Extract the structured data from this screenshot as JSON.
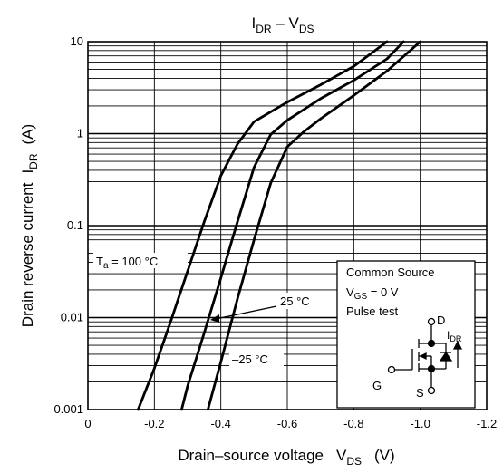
{
  "chart_data": {
    "type": "line",
    "title": "I",
    "title_sub": "DR",
    "title_mid": " – V",
    "title_sub2": "DS",
    "xlabel": "Drain–source voltage",
    "xlabel_sym": "V",
    "xlabel_sym_sub": "DS",
    "xlabel_unit": "(V)",
    "ylabel": "Drain reverse current",
    "ylabel_sym": "I",
    "ylabel_sym_sub": "DR",
    "ylabel_unit": "(A)",
    "x_scale": "linear",
    "y_scale": "log",
    "xlim": [
      0,
      -1.2
    ],
    "ylim": [
      0.001,
      10
    ],
    "grid": true,
    "x_ticks": [
      0,
      -0.2,
      -0.4,
      -0.6,
      -0.8,
      -1.0,
      -1.2
    ],
    "x_tick_labels": [
      "0",
      "-0.2",
      "-0.4",
      "-0.6",
      "-0.8",
      "-1.0",
      "-1.2"
    ],
    "y_ticks": [
      0.001,
      0.01,
      0.1,
      1,
      10
    ],
    "y_tick_labels": [
      "0.001",
      "0.01",
      "0.1",
      "1",
      "10"
    ],
    "series": [
      {
        "name": "Ta = 100 °C",
        "label_prefix": "T",
        "label_sub": "a",
        "label_rest": " = 100 °C",
        "x": [
          -0.151,
          -0.2,
          -0.25,
          -0.3,
          -0.35,
          -0.4,
          -0.45,
          -0.5,
          -0.6,
          -0.7,
          -0.8,
          -0.9
        ],
        "y": [
          0.001,
          0.0028,
          0.0093,
          0.032,
          0.11,
          0.35,
          0.77,
          1.35,
          2.2,
          3.4,
          5.4,
          10
        ]
      },
      {
        "name": "25 °C",
        "x": [
          -0.282,
          -0.3,
          -0.35,
          -0.4,
          -0.45,
          -0.5,
          -0.55,
          -0.6,
          -0.7,
          -0.8,
          -0.9,
          -0.95
        ],
        "y": [
          0.001,
          0.0018,
          0.0068,
          0.027,
          0.11,
          0.43,
          0.98,
          1.4,
          2.4,
          3.8,
          6.5,
          10
        ]
      },
      {
        "name": "–25 °C",
        "x": [
          -0.361,
          -0.4,
          -0.45,
          -0.5,
          -0.55,
          -0.6,
          -0.65,
          -0.7,
          -0.8,
          -0.9,
          -1.0
        ],
        "y": [
          0.001,
          0.0033,
          0.016,
          0.07,
          0.29,
          0.72,
          1.05,
          1.45,
          2.6,
          4.8,
          10
        ]
      }
    ]
  },
  "legend_box": {
    "line1": "Common Source",
    "line2_prefix": "V",
    "line2_sub": "GS",
    "line2_rest": " = 0 V",
    "line3": "Pulse test"
  },
  "circuit": {
    "d_label": "D",
    "g_label": "G",
    "s_label": "S",
    "i_label": "I",
    "i_sub": "DR"
  }
}
